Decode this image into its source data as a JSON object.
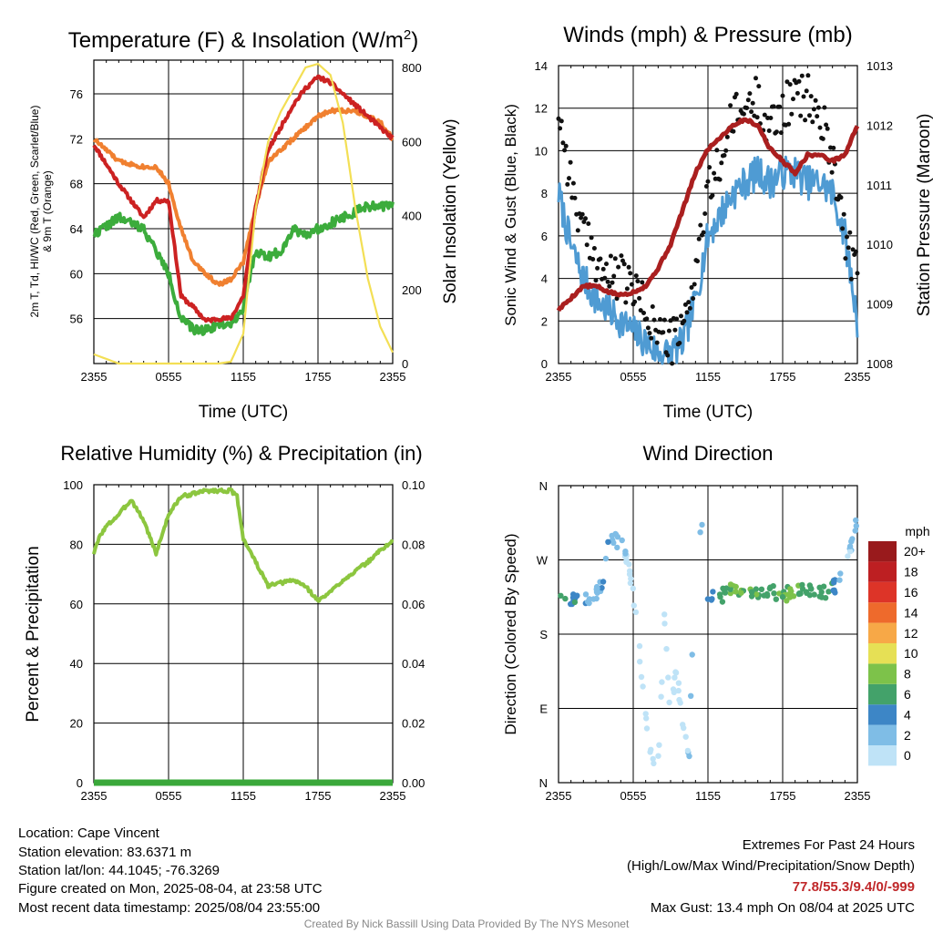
{
  "footer": {
    "location": "Location: Cape Vincent",
    "elevation": "Station elevation: 83.6371 m",
    "latlon": "Station lat/lon: 44.1045; -76.3269",
    "created": "Figure created on Mon, 2025-08-04, at 23:58 UTC",
    "recent": "Most recent data timestamp: 2025/08/04 23:55:00",
    "extremes_title": "Extremes For Past 24 Hours",
    "extremes_desc": "(High/Low/Max Wind/Precipitation/Snow Depth)",
    "extremes_values": "77.8/55.3/9.4/0/-999",
    "max_gust": "Max Gust: 13.4 mph On 08/04 at 2025 UTC",
    "credit": "Created By Nick Bassill Using Data Provided By The NYS Mesonet"
  },
  "colors": {
    "red": "#cc2222",
    "green": "#3cac3c",
    "orange": "#f08030",
    "yellow": "#f3df55",
    "wind_blue": "#4f9bd3",
    "gust_black": "#111111",
    "pressure": "#aa1f1f",
    "rh": "#8cc63f",
    "precip": "#3aa83a",
    "extremes_text": "#c0282a"
  },
  "chart_data": [
    {
      "type": "line",
      "title": "Temperature (F) & Insolation (W/m²)",
      "xlabel": "Time (UTC)",
      "ylabel": "2m T, Td, HI/WC (Red, Green, Scarlet/Blue) & 9m T (Orange)",
      "y2label": "Solar Insolation (Yellow)",
      "xticks": [
        "2355",
        "0555",
        "1155",
        "1755",
        "2355"
      ],
      "x_hours": [
        0,
        2,
        4,
        5,
        6,
        7,
        8,
        9,
        10,
        11,
        12,
        13,
        14,
        15,
        16,
        17,
        18,
        19,
        20,
        21,
        22,
        23,
        24
      ],
      "ylim": [
        52,
        79
      ],
      "yticks": [
        56,
        60,
        64,
        68,
        72,
        76
      ],
      "y2lim": [
        0,
        820
      ],
      "y2ticks": [
        0,
        200,
        400,
        600,
        800
      ],
      "grid": true,
      "series": [
        {
          "values": [
            71.5,
            68.0,
            65.0,
            66.5,
            66.5,
            58.0,
            57.0,
            55.8,
            56.0,
            56.0,
            58.0,
            66.0,
            71.0,
            73.0,
            75.0,
            76.5,
            77.5,
            77.0,
            76.0,
            75.0,
            74.0,
            73.0,
            72.0
          ]
        },
        {
          "values": [
            63.5,
            65.0,
            64.0,
            62.0,
            60.0,
            56.0,
            55.0,
            55.0,
            55.5,
            55.5,
            57.0,
            62.0,
            61.5,
            62.0,
            64.0,
            63.5,
            64.0,
            64.5,
            65.0,
            65.5,
            66.0,
            66.0,
            66.0
          ]
        },
        {
          "values": [
            72.0,
            70.0,
            69.5,
            69.5,
            68.0,
            64.0,
            61.0,
            60.0,
            59.0,
            59.5,
            61.0,
            66.0,
            70.0,
            71.0,
            72.0,
            73.0,
            74.0,
            74.5,
            74.5,
            74.5,
            74.0,
            73.5,
            72.0
          ]
        },
        {
          "values": [
            25,
            0,
            0,
            0,
            0,
            0,
            0,
            0,
            0,
            5,
            80,
            420,
            600,
            680,
            740,
            800,
            810,
            780,
            650,
            420,
            230,
            100,
            30
          ]
        }
      ]
    },
    {
      "type": "line",
      "title": "Winds (mph) & Pressure (mb)",
      "xlabel": "Time (UTC)",
      "ylabel": "Sonic Wind & Gust (Blue, Black)",
      "y2label": "Station Pressure (Maroon)",
      "xticks": [
        "2355",
        "0555",
        "1155",
        "1755",
        "2355"
      ],
      "x_hours": [
        0,
        1,
        2,
        3,
        4,
        5,
        6,
        7,
        8,
        9,
        10,
        11,
        12,
        13,
        14,
        15,
        16,
        17,
        18,
        19,
        20,
        21,
        22,
        23,
        24
      ],
      "ylim": [
        0,
        14
      ],
      "yticks": [
        0,
        2,
        4,
        6,
        8,
        10,
        12,
        14
      ],
      "y2lim": [
        1008,
        1013
      ],
      "y2ticks": [
        1008,
        1009,
        1010,
        1011,
        1012,
        1013
      ],
      "grid": true,
      "series": [
        {
          "values": [
            8.0,
            5.5,
            4.0,
            3.0,
            2.5,
            2.0,
            1.5,
            1.0,
            0.5,
            0.5,
            1.0,
            3.0,
            6.0,
            7.0,
            8.0,
            8.5,
            9.0,
            8.5,
            9.0,
            9.0,
            8.5,
            8.5,
            8.0,
            6.0,
            2.0
          ]
        },
        {
          "values": [
            12.0,
            8.5,
            6.0,
            5.0,
            4.0,
            4.0,
            3.5,
            2.5,
            1.5,
            1.0,
            1.5,
            4.5,
            8.0,
            9.5,
            11.5,
            12.0,
            12.5,
            11.0,
            12.0,
            12.5,
            12.5,
            11.5,
            10.0,
            6.0,
            4.0
          ]
        },
        {
          "values": [
            1008.9,
            1009.1,
            1009.3,
            1009.3,
            1009.2,
            1009.15,
            1009.2,
            1009.3,
            1009.6,
            1010.0,
            1010.6,
            1011.2,
            1011.6,
            1011.8,
            1012.0,
            1012.1,
            1012.0,
            1011.6,
            1011.4,
            1011.2,
            1011.5,
            1011.5,
            1011.4,
            1011.5,
            1012.0
          ]
        }
      ]
    },
    {
      "type": "line",
      "title": "Relative Humidity (%) & Precipitation (in)",
      "ylabel": "Percent & Precipitation",
      "xticks": [
        "2355",
        "0555",
        "1155",
        "1755",
        "2355"
      ],
      "x_hours": [
        0,
        0.5,
        1,
        2,
        3,
        4,
        5,
        6,
        7,
        8,
        9,
        10,
        11,
        11.5,
        12,
        13,
        14,
        15,
        16,
        17,
        18,
        19,
        20,
        21,
        22,
        23,
        24
      ],
      "ylim": [
        0,
        100
      ],
      "yticks": [
        0,
        20,
        40,
        60,
        80,
        100
      ],
      "y2lim": [
        0,
        0.1
      ],
      "y2ticks": [
        "0.00",
        "0.02",
        "0.04",
        "0.06",
        "0.08",
        "0.10"
      ],
      "grid": true,
      "series": [
        {
          "values": [
            77,
            83,
            86,
            90,
            95,
            88,
            77,
            90,
            96,
            97,
            98,
            98,
            98,
            96,
            82,
            74,
            66,
            67,
            68,
            66,
            61,
            64,
            68,
            71,
            74,
            78,
            81
          ]
        },
        {
          "values": [
            0,
            0,
            0,
            0,
            0,
            0,
            0,
            0,
            0,
            0,
            0,
            0,
            0,
            0,
            0,
            0,
            0,
            0,
            0,
            0,
            0,
            0,
            0,
            0,
            0,
            0,
            0
          ]
        }
      ]
    },
    {
      "type": "scatter",
      "title": "Wind Direction",
      "ylabel": "Direction (Colored By Speed)",
      "xticks": [
        "2355",
        "0555",
        "1155",
        "1755",
        "2355"
      ],
      "yticks": [
        "N",
        "E",
        "S",
        "W",
        "N"
      ],
      "ylim": [
        0,
        360
      ],
      "grid": true,
      "colorbar": {
        "title": "mph",
        "labels": [
          "0",
          "2",
          "4",
          "6",
          "8",
          "10",
          "12",
          "14",
          "16",
          "18",
          "20+"
        ],
        "colors": [
          "#bfe3f7",
          "#7fbde6",
          "#3d86c6",
          "#43a26a",
          "#7dc24a",
          "#e6e055",
          "#f7a847",
          "#ee6a2c",
          "#dd3428",
          "#bd1f22",
          "#991a1c"
        ]
      },
      "x_hours": [
        0,
        0.5,
        1,
        1.5,
        2,
        3,
        3.5,
        4,
        4.5,
        5,
        5.5,
        6,
        6.5,
        7,
        7.5,
        8,
        8.5,
        9,
        9.5,
        10,
        10.5,
        11,
        11.5,
        12,
        12.5,
        13,
        13.5,
        14,
        15,
        16,
        17,
        18,
        19,
        20,
        21,
        22,
        23,
        24
      ],
      "y": [
        225,
        222,
        225,
        220,
        223,
        228,
        243,
        290,
        295,
        290,
        270,
        230,
        160,
        80,
        30,
        20,
        200,
        80,
        140,
        60,
        40,
        300,
        310,
        220,
        230,
        225,
        230,
        235,
        230,
        225,
        230,
        228,
        230,
        232,
        230,
        235,
        255,
        320
      ],
      "speeds": [
        7,
        6,
        5,
        6,
        4,
        3,
        4,
        4,
        3,
        3,
        1,
        1,
        1,
        1,
        1,
        1,
        1,
        2,
        1,
        1,
        3,
        1,
        2,
        4,
        5,
        7,
        8,
        8,
        8,
        8,
        7,
        8,
        8,
        7,
        7,
        6,
        2,
        3
      ]
    }
  ]
}
